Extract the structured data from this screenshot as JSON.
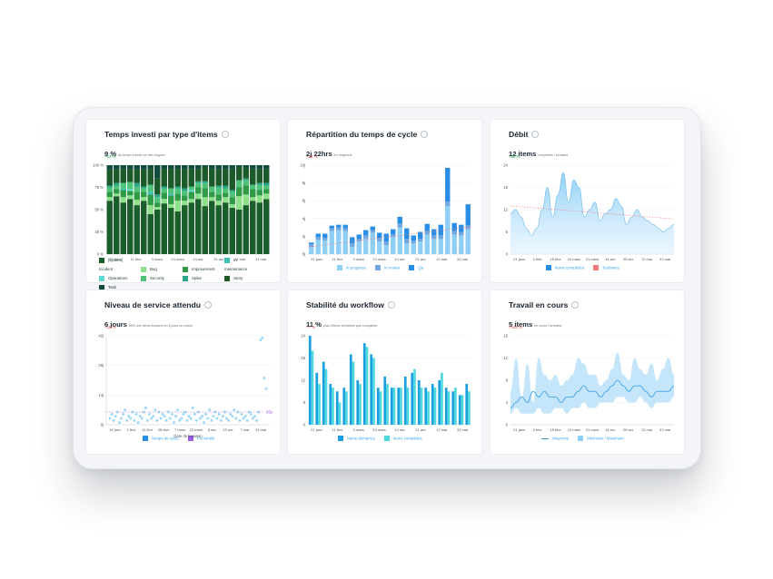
{
  "colors": {
    "type_items": [
      "#1a5e2a",
      "#8ee08a",
      "#2f9b46",
      "#3cbfb4",
      "#5fd8d0",
      "#4fc27a",
      "#2aa68a",
      "#1d5a2a",
      "#114a3e"
    ],
    "blue_light": "#8ecff5",
    "blue_mid": "#74a7e0",
    "blue_dark": "#2a8ee6",
    "cyan_light": "#4fd8e0",
    "trend_red": "#f07b7b",
    "purple": "#9b5be8"
  },
  "cards": [
    {
      "title": "Temps investi par type d'items",
      "value": "9 %",
      "subtitle": "du temps investi sur des bogues",
      "delta": "−53 %",
      "delta_dir": "pos",
      "legend": [
        {
          "label": "[system] incident",
          "color": "#1a5e2a"
        },
        {
          "label": "Bug",
          "color": "#8ee08a"
        },
        {
          "label": "Improvement",
          "color": "#2f9b46"
        },
        {
          "label": "In maintenance",
          "color": "#3cbfb4"
        },
        {
          "label": "Operations",
          "color": "#5fd8d0"
        },
        {
          "label": "Security",
          "color": "#4fc27a"
        },
        {
          "label": "Spike",
          "color": "#2aa68a"
        },
        {
          "label": "Story",
          "color": "#1d5a2a"
        },
        {
          "label": "Task",
          "color": "#114a3e"
        }
      ]
    },
    {
      "title": "Répartition du temps de cycle",
      "value": "2j 22hrs",
      "subtitle": "en moyenne",
      "delta": "+23 %",
      "delta_dir": "neg",
      "legend": [
        {
          "label": "In progress",
          "color": "#8ecff5"
        },
        {
          "label": "In review",
          "color": "#74a7e0"
        },
        {
          "label": "Qa",
          "color": "#2a8ee6"
        }
      ]
    },
    {
      "title": "Débit",
      "value": "12 items",
      "subtitle": "complétés / semaine",
      "delta": "+98 %",
      "delta_dir": "pos",
      "legend": [
        {
          "label": "Items complétés",
          "color": "#2a8ee6"
        },
        {
          "label": "Tendance",
          "color": "#f07b7b"
        }
      ]
    },
    {
      "title": "Niveau de service attendu",
      "value": "6 jours",
      "subtitle": "85% des items finissent en 6 jours ou moins",
      "delta": "+18 %",
      "delta_dir": "neg",
      "legend": [
        {
          "label": "Temps de cycle",
          "color": "#2a8ee6"
        },
        {
          "label": "Percentile",
          "color": "#9b5be8"
        }
      ]
    },
    {
      "title": "Stabilité du workflow",
      "value": "11 %",
      "subtitle": "plus d'items démarrés que complétés",
      "delta": "−7 %",
      "delta_dir": "neg",
      "legend": [
        {
          "label": "Items démarrés",
          "color": "#1aa0e0"
        },
        {
          "label": "Items complétés",
          "color": "#4fd8e0"
        }
      ]
    },
    {
      "title": "Travail en cours",
      "value": "5 items",
      "subtitle": "en cours / semaine",
      "delta": "+163 %",
      "delta_dir": "neg",
      "legend": [
        {
          "label": "Moyenne",
          "color": "#2a8ee6",
          "line": true
        },
        {
          "label": "Minimum / Maximum",
          "color": "#8ecff5"
        }
      ]
    }
  ],
  "chart_data": [
    {
      "type": "bar",
      "stacked": true,
      "x_tick_labels": [
        "21 janv.",
        "11 févr.",
        "3 mars",
        "24 mars",
        "14 avr.",
        "21 avr.",
        "12 mai",
        "31 mai"
      ],
      "y_tick_labels": [
        "0 %",
        "25 %",
        "50 %",
        "75 %",
        "100 %"
      ],
      "ylim": [
        0,
        100
      ],
      "series": [
        {
          "name": "[system] incident",
          "values": [
            60,
            65,
            58,
            62,
            55,
            60,
            45,
            50,
            57,
            52,
            48,
            55,
            58,
            62,
            54,
            60,
            55,
            58,
            52,
            50,
            55,
            60,
            58,
            62
          ]
        },
        {
          "name": "Bug",
          "values": [
            4,
            3,
            6,
            4,
            6,
            4,
            10,
            3,
            5,
            4,
            12,
            5,
            4,
            6,
            10,
            4,
            5,
            6,
            4,
            15,
            12,
            4,
            8,
            6
          ]
        },
        {
          "name": "Improvement",
          "values": [
            6,
            5,
            8,
            5,
            9,
            6,
            12,
            5,
            7,
            10,
            8,
            6,
            8,
            7,
            10,
            6,
            7,
            5,
            8,
            10,
            10,
            9,
            6,
            5
          ]
        },
        {
          "name": "In maintenance",
          "values": [
            0,
            0,
            2,
            0,
            0,
            0,
            3,
            0,
            0,
            2,
            0,
            0,
            0,
            0,
            0,
            0,
            0,
            0,
            0,
            0,
            0,
            0,
            0,
            0
          ]
        },
        {
          "name": "Operations",
          "values": [
            0,
            0,
            0,
            2,
            0,
            0,
            0,
            0,
            0,
            0,
            0,
            0,
            2,
            0,
            0,
            0,
            0,
            0,
            0,
            0,
            0,
            0,
            0,
            0
          ]
        },
        {
          "name": "Security",
          "values": [
            5,
            4,
            6,
            8,
            6,
            4,
            8,
            6,
            5,
            6,
            6,
            5,
            4,
            5,
            6,
            6,
            8,
            5,
            6,
            8,
            6,
            5,
            6,
            4
          ]
        },
        {
          "name": "Spike",
          "values": [
            2,
            3,
            0,
            0,
            4,
            2,
            0,
            3,
            2,
            0,
            2,
            3,
            0,
            2,
            2,
            0,
            2,
            3,
            2,
            0,
            2,
            0,
            2,
            3
          ]
        },
        {
          "name": "Story",
          "values": [
            18,
            15,
            16,
            14,
            15,
            19,
            18,
            18,
            20,
            22,
            20,
            21,
            20,
            14,
            16,
            20,
            18,
            19,
            24,
            15,
            12,
            18,
            16,
            16
          ]
        },
        {
          "name": "Task",
          "values": [
            5,
            5,
            4,
            5,
            5,
            5,
            4,
            15,
            4,
            4,
            4,
            5,
            4,
            4,
            2,
            4,
            5,
            4,
            4,
            2,
            3,
            4,
            4,
            4
          ]
        }
      ]
    },
    {
      "type": "bar",
      "stacked": true,
      "x_tick_labels": [
        "21 janv.",
        "11 févr.",
        "3 mars",
        "24 mars",
        "14 avr.",
        "21 avr.",
        "12 mai",
        "31 mai"
      ],
      "y_tick_labels": [
        "0j",
        "2j",
        "4j",
        "6j",
        "8j",
        "10j"
      ],
      "ylim": [
        0,
        10
      ],
      "trend": [
        0.8,
        3.1
      ],
      "series": [
        {
          "name": "In progress",
          "values": [
            0.8,
            1.6,
            1.5,
            2.6,
            2.7,
            2.6,
            0.8,
            1.4,
            1.7,
            2.4,
            1.4,
            1.0,
            1.9,
            3.0,
            1.2,
            1.2,
            1.4,
            2.2,
            1.7,
            1.7,
            5.4,
            2.2,
            2.1,
            2.8
          ]
        },
        {
          "name": "In review",
          "values": [
            0.3,
            0.3,
            0.3,
            0.3,
            0.3,
            0.3,
            0.4,
            0.3,
            0.4,
            0.3,
            0.4,
            0.4,
            0.3,
            0.4,
            0.5,
            0.3,
            0.3,
            0.4,
            0.4,
            0.4,
            0.5,
            0.4,
            0.4,
            0.4
          ]
        },
        {
          "name": "Qa",
          "values": [
            0.2,
            0.4,
            0.5,
            0.3,
            0.3,
            0.4,
            0.7,
            0.5,
            0.6,
            0.4,
            0.6,
            0.9,
            0.6,
            0.8,
            1.2,
            0.6,
            0.8,
            0.8,
            0.7,
            1.2,
            3.8,
            0.9,
            0.8,
            2.4
          ]
        }
      ]
    },
    {
      "type": "area",
      "x_tick_labels": [
        "21 janv.",
        "4 févr.",
        "18 févr.",
        "10 mars",
        "31 mars",
        "14 avr.",
        "28 avr.",
        "12 mai",
        "31 mai"
      ],
      "y_tick_labels": [
        "0",
        "6",
        "12",
        "18",
        "24"
      ],
      "ylim": [
        0,
        24
      ],
      "series": [
        {
          "name": "Items complétés",
          "values": [
            11,
            12,
            10,
            7,
            5,
            7,
            12,
            18,
            10,
            16,
            22,
            14,
            20,
            18,
            10,
            12,
            14,
            9,
            11,
            12,
            15,
            13,
            8,
            10,
            12,
            10,
            9,
            8,
            7,
            6,
            7,
            8
          ]
        },
        {
          "name": "Tendance",
          "values": [
            13,
            9.5
          ]
        }
      ]
    },
    {
      "type": "scatter",
      "x_tick_labels": [
        "15 janv.",
        "1 févr.",
        "11 févr.",
        "28 févr.",
        "7 mars",
        "22 mars",
        "8 avr.",
        "23 avr.",
        "7 mai",
        "31 mai"
      ],
      "y_tick_labels": [
        "0j",
        "14j",
        "28j",
        "42j"
      ],
      "ylim": [
        0,
        42
      ],
      "xlabel": "Date de livraison",
      "percentile_label": "85e",
      "percentile_value": 6,
      "series": [
        {
          "name": "Temps de cycle",
          "values": [
            3,
            5,
            2,
            4,
            6,
            1,
            3,
            5,
            7,
            2,
            4,
            3,
            6,
            2,
            5,
            1,
            4,
            3,
            6,
            8,
            2,
            5,
            3,
            4,
            7,
            2,
            6,
            3,
            5,
            4,
            2,
            6,
            3,
            5,
            1,
            4,
            7,
            2,
            3,
            5,
            6,
            2,
            4,
            3,
            8,
            5,
            2,
            6,
            3,
            4,
            1,
            5,
            3,
            7,
            2,
            4,
            6,
            3,
            5,
            2,
            4,
            6,
            3,
            2,
            5,
            4,
            7,
            3,
            6,
            2,
            5,
            3,
            4,
            2,
            6,
            5,
            3,
            4,
            2,
            6,
            40,
            41,
            22,
            17
          ]
        }
      ]
    },
    {
      "type": "bar",
      "x_tick_labels": [
        "21 janv.",
        "11 févr.",
        "3 mars",
        "24 mars",
        "14 avr.",
        "21 avr.",
        "12 mai",
        "31 mai"
      ],
      "y_tick_labels": [
        "0",
        "6",
        "12",
        "18",
        "24"
      ],
      "ylim": [
        0,
        24
      ],
      "series": [
        {
          "name": "Items démarrés",
          "values": [
            24,
            14,
            17,
            11,
            9,
            10,
            19,
            12,
            22,
            19,
            10,
            13,
            10,
            10,
            13,
            14,
            12,
            10,
            11,
            12,
            10,
            9,
            8,
            11
          ]
        },
        {
          "name": "Items complétés",
          "values": [
            20,
            11,
            15,
            10,
            6,
            9,
            17,
            11,
            21,
            18,
            9,
            11,
            10,
            10,
            10,
            15,
            10,
            9,
            10,
            14,
            9,
            10,
            8,
            9
          ]
        }
      ]
    },
    {
      "type": "area",
      "x_tick_labels": [
        "21 janv.",
        "4 févr.",
        "18 févr.",
        "10 mars",
        "31 mars",
        "14 avr.",
        "28 avr.",
        "12 mai",
        "31 mai"
      ],
      "y_tick_labels": [
        "0",
        "4",
        "8",
        "12",
        "16"
      ],
      "ylim": [
        0,
        16
      ],
      "series": [
        {
          "name": "Moyenne",
          "values": [
            3,
            4,
            5,
            4,
            6,
            5,
            6,
            5,
            5,
            4,
            5,
            5,
            6,
            7,
            6,
            6,
            5,
            6,
            7,
            8,
            7,
            6,
            7,
            7,
            6,
            5,
            6,
            6,
            6,
            7
          ]
        },
        {
          "name": "Minimum",
          "values": [
            2,
            3,
            2,
            2,
            2,
            3,
            2,
            2,
            3,
            3,
            2,
            3,
            3,
            4,
            3,
            3,
            4,
            4,
            4,
            5,
            5,
            4,
            4,
            5,
            4,
            3,
            4,
            4,
            4,
            5
          ]
        },
        {
          "name": "Maximum",
          "values": [
            6,
            12,
            5,
            11,
            4,
            12,
            9,
            8,
            9,
            7,
            8,
            9,
            12,
            11,
            9,
            9,
            7,
            8,
            10,
            13,
            9,
            8,
            12,
            10,
            9,
            11,
            8,
            10,
            12,
            9
          ]
        }
      ]
    }
  ]
}
